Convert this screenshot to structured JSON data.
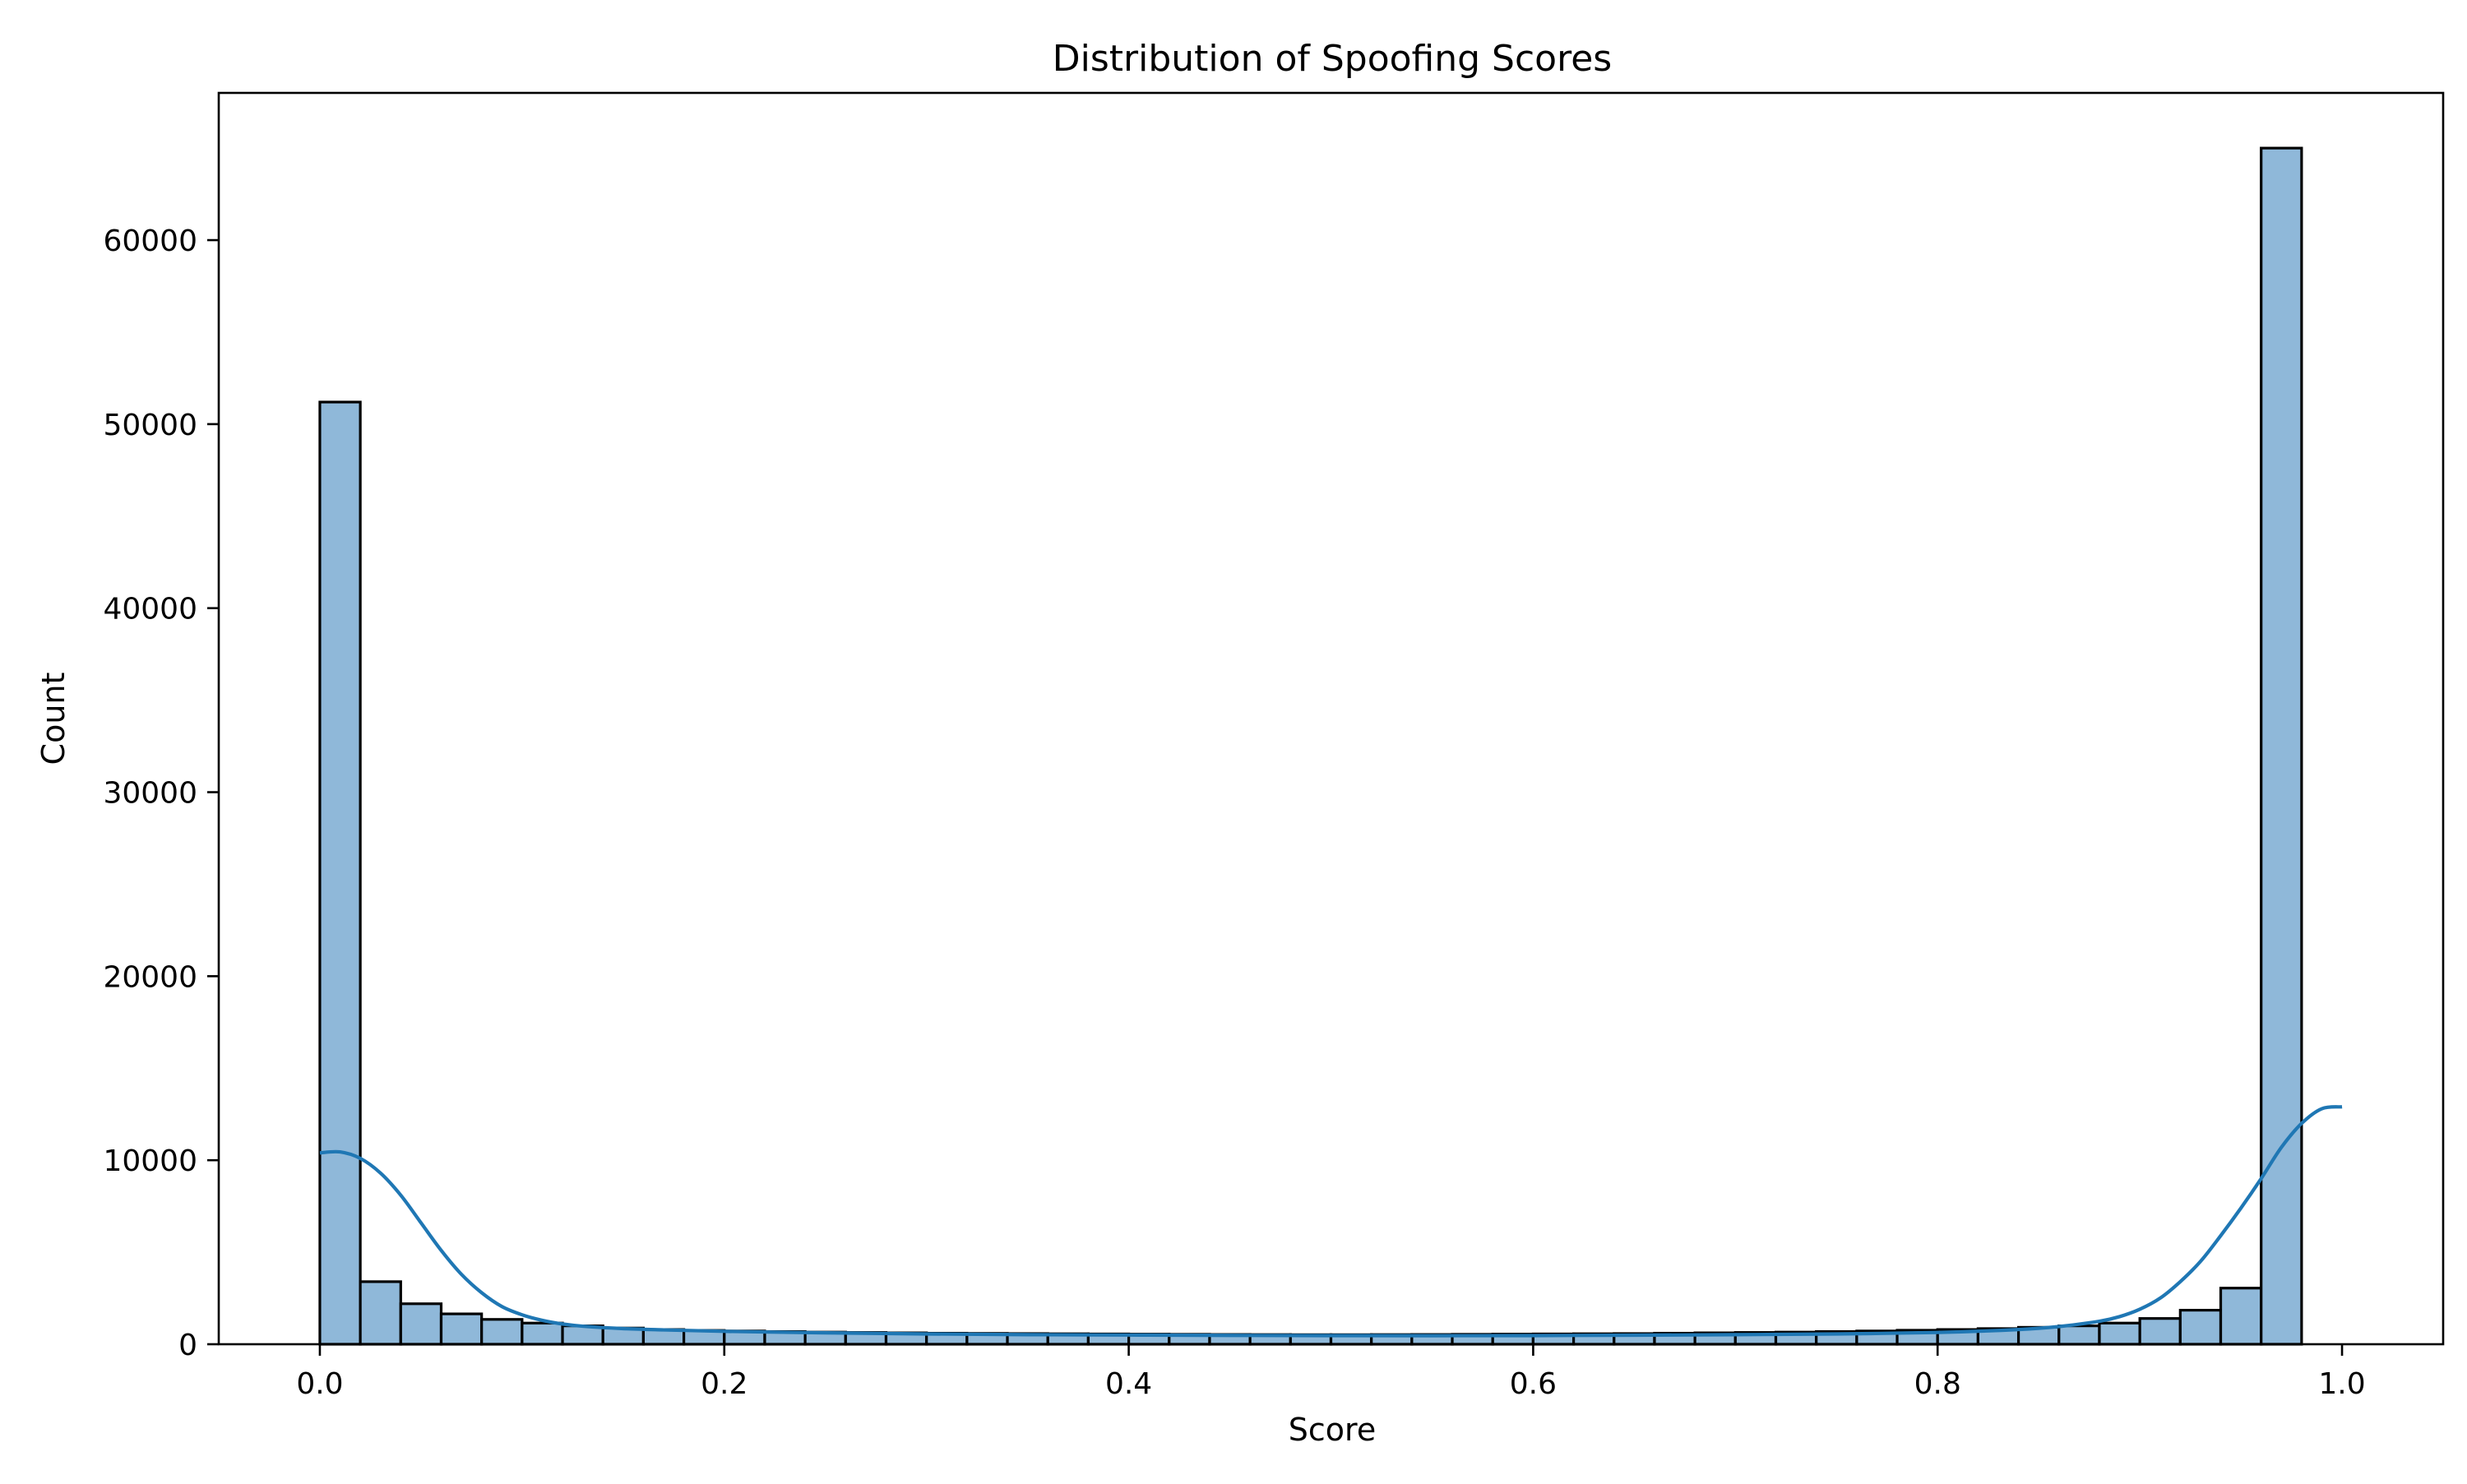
{
  "chart_data": {
    "type": "bar",
    "title": "Distribution of Spoofing Scores",
    "xlabel": "Score",
    "ylabel": "Count",
    "xlim": [
      -0.05,
      1.05
    ],
    "ylim": [
      0,
      68000
    ],
    "x_ticks": [
      0.0,
      0.2,
      0.4,
      0.6,
      0.8,
      1.0
    ],
    "x_tick_labels": [
      "0.0",
      "0.2",
      "0.4",
      "0.6",
      "0.8",
      "1.0"
    ],
    "y_ticks": [
      0,
      10000,
      20000,
      30000,
      40000,
      50000,
      60000
    ],
    "y_tick_labels": [
      "0",
      "10000",
      "20000",
      "30000",
      "40000",
      "50000",
      "60000"
    ],
    "grid": false,
    "legend": "none",
    "colors": {
      "bar_fill": "#8fb8d9",
      "bar_edge": "#000000",
      "kde_line": "#1f77b4"
    },
    "bins": {
      "start": 0.0,
      "width": 0.02,
      "counts": [
        51200,
        3400,
        2200,
        1650,
        1350,
        1150,
        1000,
        880,
        800,
        750,
        720,
        690,
        660,
        640,
        620,
        600,
        590,
        580,
        570,
        560,
        550,
        540,
        530,
        525,
        520,
        520,
        525,
        530,
        540,
        550,
        560,
        570,
        580,
        600,
        620,
        640,
        660,
        690,
        720,
        760,
        800,
        850,
        920,
        1000,
        1150,
        1400,
        1850,
        3050,
        65000
      ]
    },
    "kde": {
      "x": [
        0.0,
        0.01,
        0.02,
        0.03,
        0.04,
        0.05,
        0.06,
        0.07,
        0.08,
        0.09,
        0.1,
        0.11,
        0.12,
        0.13,
        0.15,
        0.17,
        0.2,
        0.25,
        0.3,
        0.35,
        0.4,
        0.45,
        0.5,
        0.55,
        0.6,
        0.65,
        0.7,
        0.75,
        0.8,
        0.84,
        0.86,
        0.88,
        0.89,
        0.9,
        0.91,
        0.92,
        0.93,
        0.94,
        0.95,
        0.96,
        0.97,
        0.98,
        0.99,
        1.0
      ],
      "y": [
        10400,
        10450,
        10100,
        9300,
        8100,
        6600,
        5100,
        3800,
        2800,
        2050,
        1600,
        1300,
        1100,
        980,
        850,
        780,
        700,
        620,
        560,
        520,
        500,
        480,
        470,
        465,
        470,
        490,
        520,
        560,
        640,
        800,
        960,
        1250,
        1500,
        1900,
        2500,
        3400,
        4500,
        5900,
        7400,
        9000,
        10700,
        12000,
        12800,
        12900
      ]
    }
  }
}
